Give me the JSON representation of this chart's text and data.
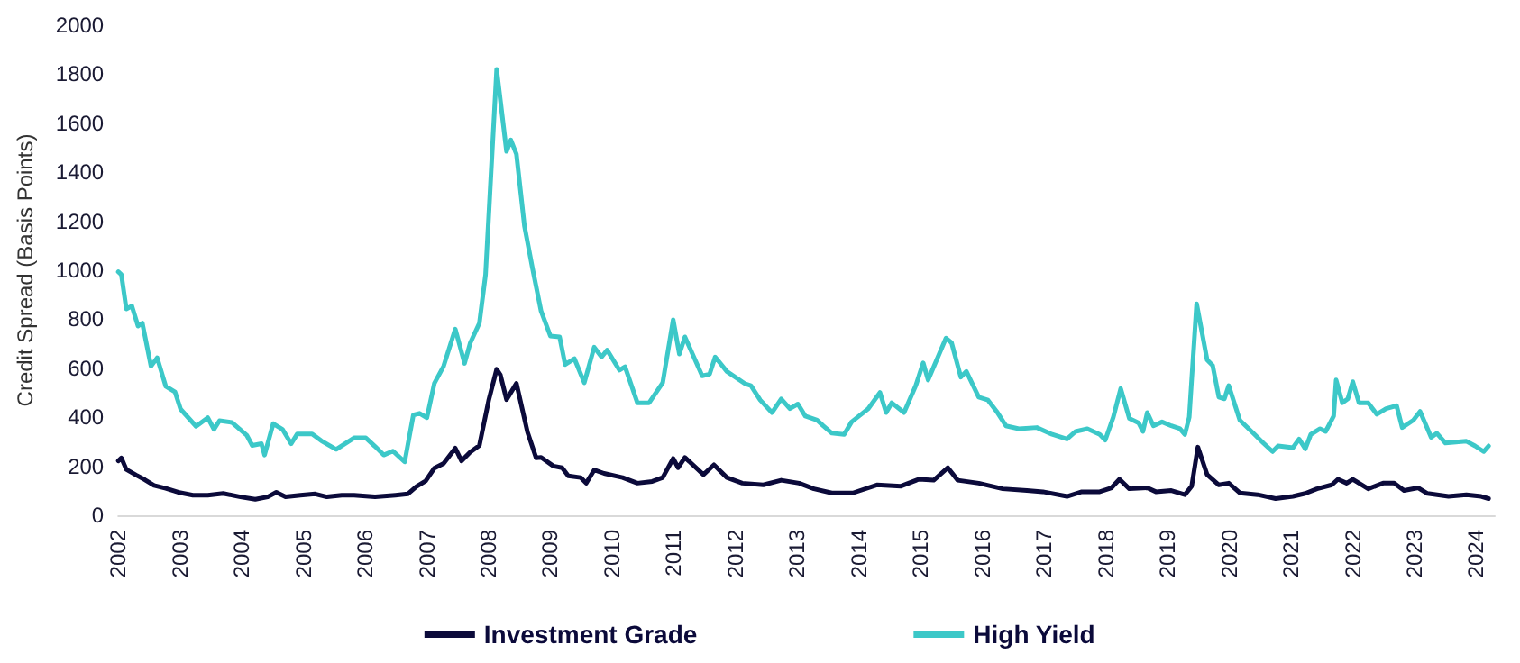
{
  "chart_data": {
    "type": "line",
    "ylabel": "Credit Spread (Basis Points)",
    "xlim": [
      2002,
      2024.3
    ],
    "xticks": [
      2002,
      2003,
      2004,
      2005,
      2006,
      2007,
      2008,
      2009,
      2010,
      2011,
      2012,
      2013,
      2014,
      2015,
      2016,
      2017,
      2018,
      2019,
      2020,
      2021,
      2022,
      2023,
      2024
    ],
    "ylim": [
      0,
      2000
    ],
    "yticks": [
      0,
      200,
      400,
      600,
      800,
      1000,
      1200,
      1400,
      1600,
      1800,
      2000
    ],
    "grid": false,
    "legend": "bottom",
    "marker": "none",
    "line_style": "solid",
    "series": [
      {
        "name": "Investment Grade",
        "color": "#0b0a3a",
        "x": [
          2002.0,
          2002.05,
          2002.13,
          2002.29,
          2002.43,
          2002.58,
          2002.77,
          2002.97,
          2003.21,
          2003.45,
          2003.7,
          2003.98,
          2004.22,
          2004.42,
          2004.56,
          2004.71,
          2004.95,
          2005.19,
          2005.38,
          2005.62,
          2005.82,
          2006.16,
          2006.49,
          2006.69,
          2006.83,
          2006.98,
          2007.12,
          2007.27,
          2007.46,
          2007.56,
          2007.7,
          2007.85,
          2008.0,
          2008.13,
          2008.19,
          2008.29,
          2008.45,
          2008.63,
          2008.77,
          2008.85,
          2009.05,
          2009.19,
          2009.29,
          2009.49,
          2009.58,
          2009.71,
          2009.87,
          2010.17,
          2010.41,
          2010.65,
          2010.82,
          2010.99,
          2011.07,
          2011.18,
          2011.48,
          2011.65,
          2011.86,
          2012.11,
          2012.45,
          2012.74,
          2013.03,
          2013.27,
          2013.56,
          2013.9,
          2014.29,
          2014.68,
          2014.97,
          2015.21,
          2015.44,
          2015.6,
          2015.94,
          2016.33,
          2016.72,
          2016.98,
          2017.37,
          2017.61,
          2017.9,
          2018.09,
          2018.22,
          2018.38,
          2018.67,
          2018.81,
          2019.06,
          2019.28,
          2019.39,
          2019.49,
          2019.64,
          2019.83,
          2019.99,
          2020.17,
          2020.46,
          2020.75,
          2021.03,
          2021.23,
          2021.42,
          2021.66,
          2021.76,
          2021.9,
          2022.0,
          2022.25,
          2022.49,
          2022.67,
          2022.83,
          2023.06,
          2023.21,
          2023.55,
          2023.84,
          2024.08,
          2024.2
        ],
        "values": [
          222,
          234,
          187,
          164,
          145,
          122,
          110,
          94,
          82,
          82,
          89,
          75,
          65,
          75,
          94,
          75,
          82,
          87,
          75,
          82,
          82,
          75,
          82,
          87,
          117,
          140,
          192,
          211,
          274,
          222,
          257,
          285,
          468,
          596,
          573,
          472,
          538,
          339,
          234,
          236,
          201,
          194,
          161,
          154,
          131,
          185,
          171,
          154,
          131,
          138,
          154,
          232,
          194,
          236,
          166,
          206,
          154,
          131,
          124,
          143,
          131,
          108,
          91,
          91,
          124,
          119,
          147,
          143,
          194,
          143,
          131,
          108,
          101,
          96,
          77,
          96,
          96,
          112,
          147,
          108,
          112,
          96,
          101,
          84,
          119,
          278,
          166,
          124,
          131,
          91,
          84,
          68,
          77,
          89,
          108,
          124,
          147,
          131,
          147,
          108,
          131,
          131,
          101,
          112,
          89,
          77,
          84,
          77,
          68
        ]
      },
      {
        "name": "High Yield",
        "color": "#3cc8c8",
        "x": [
          2002.0,
          2002.05,
          2002.13,
          2002.22,
          2002.32,
          2002.39,
          2002.53,
          2002.63,
          2002.77,
          2002.92,
          2003.01,
          2003.26,
          2003.45,
          2003.55,
          2003.64,
          2003.84,
          2004.08,
          2004.17,
          2004.32,
          2004.37,
          2004.51,
          2004.66,
          2004.8,
          2004.9,
          2005.14,
          2005.29,
          2005.53,
          2005.82,
          2006.01,
          2006.16,
          2006.3,
          2006.45,
          2006.64,
          2006.78,
          2006.88,
          2007.0,
          2007.12,
          2007.27,
          2007.46,
          2007.61,
          2007.7,
          2007.85,
          2007.95,
          2008.13,
          2008.29,
          2008.36,
          2008.45,
          2008.58,
          2008.71,
          2008.85,
          2009.0,
          2009.15,
          2009.24,
          2009.39,
          2009.55,
          2009.71,
          2009.83,
          2009.92,
          2010.12,
          2010.21,
          2010.41,
          2010.6,
          2010.82,
          2010.99,
          2011.09,
          2011.18,
          2011.46,
          2011.58,
          2011.67,
          2011.86,
          2012.16,
          2012.25,
          2012.4,
          2012.59,
          2012.74,
          2012.88,
          2013.01,
          2013.13,
          2013.32,
          2013.42,
          2013.56,
          2013.76,
          2013.88,
          2014.0,
          2014.15,
          2014.34,
          2014.44,
          2014.53,
          2014.73,
          2014.92,
          2015.04,
          2015.12,
          2015.41,
          2015.5,
          2015.65,
          2015.74,
          2015.94,
          2016.09,
          2016.23,
          2016.38,
          2016.59,
          2016.88,
          2017.13,
          2017.37,
          2017.51,
          2017.7,
          2017.9,
          2017.99,
          2018.12,
          2018.24,
          2018.38,
          2018.53,
          2018.6,
          2018.67,
          2018.77,
          2018.91,
          2019.06,
          2019.2,
          2019.28,
          2019.35,
          2019.47,
          2019.64,
          2019.73,
          2019.83,
          2019.92,
          2019.99,
          2020.17,
          2020.36,
          2020.55,
          2020.7,
          2020.79,
          2021.03,
          2021.13,
          2021.23,
          2021.32,
          2021.47,
          2021.56,
          2021.69,
          2021.73,
          2021.83,
          2021.92,
          2022.0,
          2022.1,
          2022.25,
          2022.39,
          2022.54,
          2022.71,
          2022.8,
          2022.98,
          2023.09,
          2023.27,
          2023.36,
          2023.5,
          2023.84,
          2023.98,
          2024.12,
          2024.2
        ],
        "values": [
          994,
          982,
          842,
          854,
          772,
          784,
          608,
          643,
          526,
          503,
          433,
          363,
          398,
          351,
          386,
          379,
          327,
          285,
          292,
          246,
          374,
          351,
          292,
          332,
          332,
          304,
          269,
          316,
          316,
          281,
          246,
          262,
          218,
          409,
          416,
          398,
          538,
          608,
          760,
          620,
          702,
          784,
          982,
          1820,
          1485,
          1532,
          1474,
          1181,
          1008,
          833,
          732,
          728,
          615,
          639,
          541,
          686,
          646,
          674,
          592,
          606,
          459,
          459,
          541,
          798,
          658,
          728,
          569,
          576,
          646,
          587,
          536,
          529,
          470,
          419,
          475,
          435,
          454,
          405,
          388,
          365,
          335,
          330,
          381,
          405,
          435,
          501,
          419,
          459,
          419,
          529,
          622,
          552,
          723,
          704,
          564,
          587,
          482,
          470,
          424,
          365,
          353,
          358,
          330,
          311,
          342,
          353,
          330,
          307,
          400,
          517,
          395,
          377,
          342,
          419,
          365,
          381,
          365,
          353,
          330,
          400,
          863,
          634,
          611,
          482,
          475,
          529,
          388,
          342,
          295,
          260,
          283,
          276,
          311,
          271,
          330,
          353,
          342,
          405,
          552,
          459,
          475,
          545,
          459,
          459,
          412,
          435,
          447,
          358,
          388,
          424,
          318,
          335,
          295,
          302,
          283,
          260,
          283
        ]
      }
    ]
  }
}
